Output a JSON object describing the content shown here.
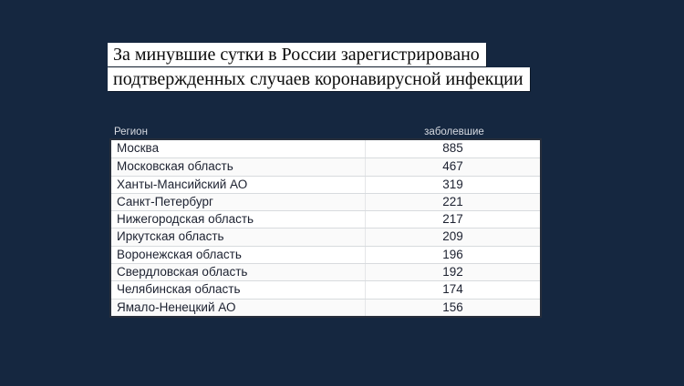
{
  "colors": {
    "background": "#152740",
    "headline_strip": "#ffffff",
    "headline_text": "#0b0b0b",
    "table_header_text": "#d6dae1",
    "row_alt": "#fafafa",
    "row_text": "#1c2130",
    "table_border": "#272e3b"
  },
  "headline": {
    "lines": [
      "За минувшие сутки в России зарегистрировано",
      "подтвержденных случаев коронавирусной инфекции"
    ]
  },
  "chart_data": {
    "type": "table",
    "title": "За минувшие сутки в России зарегистрировано подтвержденных случаев коронавирусной инфекции",
    "columns": [
      "Регион",
      "заболевшие"
    ],
    "rows": [
      [
        "Москва",
        885
      ],
      [
        "Московская область",
        467
      ],
      [
        "Ханты-Мансийский АО",
        319
      ],
      [
        "Санкт-Петербург",
        221
      ],
      [
        "Нижегородская область",
        217
      ],
      [
        "Иркутская область",
        209
      ],
      [
        "Воронежская область",
        196
      ],
      [
        "Свердловская область",
        192
      ],
      [
        "Челябинская область",
        174
      ],
      [
        "Ямало-Ненецкий АО",
        156
      ]
    ]
  }
}
